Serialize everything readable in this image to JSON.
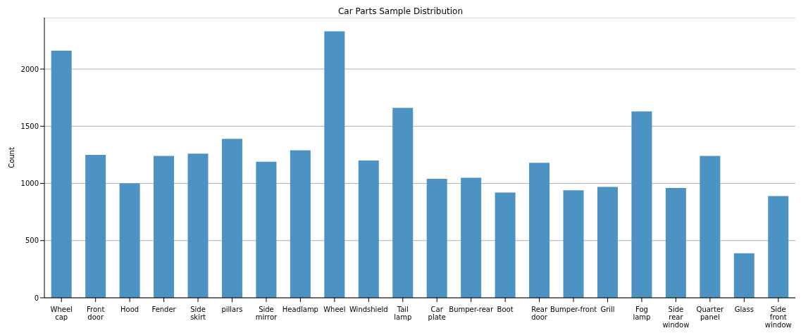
{
  "chart_data": {
    "type": "bar",
    "title": "Car Parts Sample Distribution",
    "ylabel": "Count",
    "categories": [
      "Wheel cap",
      "Front door",
      "Hood",
      "Fender",
      "Side skirt",
      "pillars",
      "Side mirror",
      "Headlamp",
      "Wheel",
      "Windshield",
      "Tail lamp",
      "Car plate",
      "Bumper-rear",
      "Boot",
      "Rear door",
      "Bumper-front",
      "Grill",
      "Fog lamp",
      "Side rear window",
      "Quarter panel",
      "Glass",
      "Side front window"
    ],
    "values": [
      2160,
      1250,
      1000,
      1240,
      1260,
      1390,
      1190,
      1290,
      2330,
      1200,
      1660,
      1040,
      1050,
      920,
      1180,
      940,
      970,
      1630,
      960,
      1240,
      390,
      890
    ],
    "color": "#4c92c3",
    "ylim": [
      0,
      2450
    ],
    "yticks": [
      0,
      500,
      1000,
      1500,
      2000
    ],
    "grid": "y"
  }
}
